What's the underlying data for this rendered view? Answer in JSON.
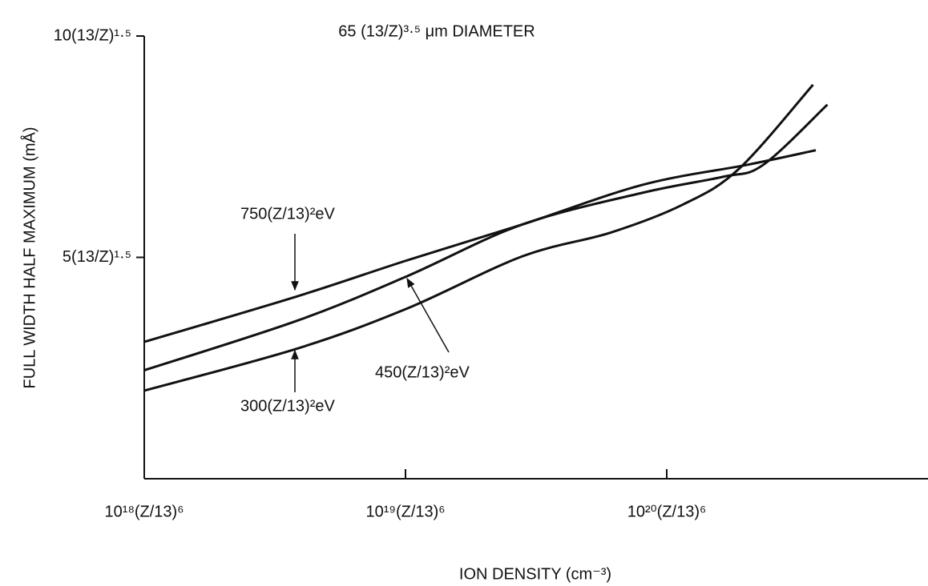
{
  "chart_data": {
    "type": "line",
    "title": "65 (13/Z)³·⁵ μm DIAMETER",
    "x_label": "ION DENSITY (cm⁻³)",
    "y_label": "FULL WIDTH HALF MAXIMUM (mÅ)",
    "x_scale": "log",
    "xlim": [
      1e+18,
      1e+21
    ],
    "xticks": [
      {
        "value": 1e+18,
        "label": "10¹⁸(Z/13)⁶"
      },
      {
        "value": 1e+19,
        "label": "10¹⁹(Z/13)⁶"
      },
      {
        "value": 1e+20,
        "label": "10²⁰(Z/13)⁶"
      }
    ],
    "ylim": [
      0,
      10
    ],
    "yticks": [
      {
        "value": 5,
        "label": "5(13/Z)¹·⁵"
      },
      {
        "value": 10,
        "label": "10(13/Z)¹·⁵"
      }
    ],
    "grid": false,
    "series": [
      {
        "name": "750(Z/13)²eV",
        "color": "#111111",
        "x": [
          1e+18,
          3.85e+18,
          1.01e+19,
          2.79e+19,
          8.09e+19,
          2.03e+20,
          3.72e+20
        ],
        "values": [
          3.09,
          4.12,
          4.93,
          5.74,
          6.64,
          7.09,
          7.42
        ]
      },
      {
        "name": "450(Z/13)²eV",
        "color": "#111111",
        "x": [
          1e+18,
          3.85e+18,
          1.01e+19,
          2.79e+19,
          8.09e+19,
          1.64e+20,
          2.34e+20,
          4.12e+20
        ],
        "values": [
          2.45,
          3.57,
          4.57,
          5.74,
          6.46,
          6.82,
          7.09,
          8.45
        ]
      },
      {
        "name": "300(Z/13)²eV",
        "color": "#111111",
        "x": [
          1e+18,
          3.85e+18,
          1.01e+19,
          2.79e+19,
          6.1e+19,
          1.15e+20,
          1.89e+20,
          3.63e+20
        ],
        "values": [
          1.99,
          2.94,
          3.84,
          5.02,
          5.56,
          6.19,
          7.0,
          8.9
        ]
      }
    ]
  }
}
